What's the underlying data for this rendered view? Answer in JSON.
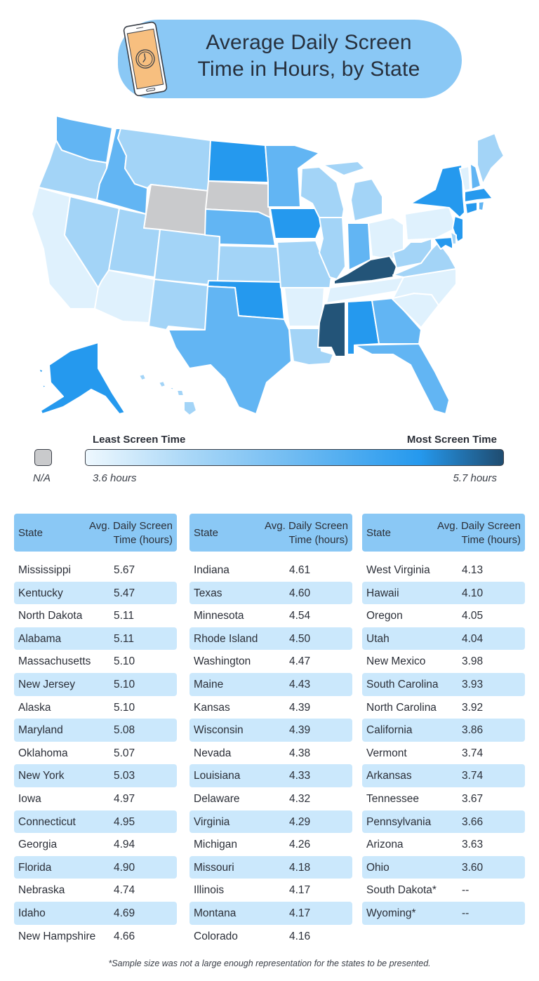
{
  "header": {
    "title_line1": "Average Daily Screen",
    "title_line2": "Time in Hours, by State",
    "icon": "phone-clock-icon"
  },
  "colors": {
    "tier_very_light": "#dff1fd",
    "tier_light": "#a3d4f7",
    "tier_medium": "#62b5f3",
    "tier_bright": "#2599ee",
    "tier_dark": "#235478",
    "na": "#c9cacc",
    "table_header": "#8ac8f5",
    "row_stripe": "#cbe8fc"
  },
  "legend": {
    "least_label": "Least Screen Time",
    "most_label": "Most Screen Time",
    "min_value": "3.6 hours",
    "max_value": "5.7 hours",
    "na_label": "N/A"
  },
  "table_headers": {
    "state": "State",
    "value_line1": "Avg. Daily Screen",
    "value_line2": "Time (hours)"
  },
  "columns": [
    {
      "rows": [
        {
          "state": "Mississippi",
          "value": "5.67"
        },
        {
          "state": "Kentucky",
          "value": "5.47"
        },
        {
          "state": "North Dakota",
          "value": "5.11"
        },
        {
          "state": "Alabama",
          "value": "5.11"
        },
        {
          "state": "Massachusetts",
          "value": "5.10"
        },
        {
          "state": "New Jersey",
          "value": "5.10"
        },
        {
          "state": "Alaska",
          "value": "5.10"
        },
        {
          "state": "Maryland",
          "value": "5.08"
        },
        {
          "state": "Oklahoma",
          "value": "5.07"
        },
        {
          "state": "New York",
          "value": "5.03"
        },
        {
          "state": "Iowa",
          "value": "4.97"
        },
        {
          "state": "Connecticut",
          "value": "4.95"
        },
        {
          "state": "Georgia",
          "value": "4.94"
        },
        {
          "state": "Florida",
          "value": "4.90"
        },
        {
          "state": "Nebraska",
          "value": "4.74"
        },
        {
          "state": "Idaho",
          "value": "4.69"
        },
        {
          "state": "New Hampshire",
          "value": "4.66"
        }
      ]
    },
    {
      "rows": [
        {
          "state": "Indiana",
          "value": "4.61"
        },
        {
          "state": "Texas",
          "value": "4.60"
        },
        {
          "state": "Minnesota",
          "value": "4.54"
        },
        {
          "state": "Rhode Island",
          "value": "4.50"
        },
        {
          "state": "Washington",
          "value": "4.47"
        },
        {
          "state": "Maine",
          "value": "4.43"
        },
        {
          "state": "Kansas",
          "value": "4.39"
        },
        {
          "state": "Wisconsin",
          "value": "4.39"
        },
        {
          "state": "Nevada",
          "value": "4.38"
        },
        {
          "state": "Louisiana",
          "value": "4.33"
        },
        {
          "state": "Delaware",
          "value": "4.32"
        },
        {
          "state": "Virginia",
          "value": "4.29"
        },
        {
          "state": "Michigan",
          "value": "4.26"
        },
        {
          "state": "Missouri",
          "value": "4.18"
        },
        {
          "state": "Illinois",
          "value": "4.17"
        },
        {
          "state": "Montana",
          "value": "4.17"
        },
        {
          "state": "Colorado",
          "value": "4.16"
        }
      ]
    },
    {
      "rows": [
        {
          "state": "West Virginia",
          "value": "4.13"
        },
        {
          "state": "Hawaii",
          "value": "4.10"
        },
        {
          "state": "Oregon",
          "value": "4.05"
        },
        {
          "state": "Utah",
          "value": "4.04"
        },
        {
          "state": "New Mexico",
          "value": "3.98"
        },
        {
          "state": "South Carolina",
          "value": "3.93"
        },
        {
          "state": "North Carolina",
          "value": "3.92"
        },
        {
          "state": "California",
          "value": "3.86"
        },
        {
          "state": "Vermont",
          "value": "3.74"
        },
        {
          "state": "Arkansas",
          "value": "3.74"
        },
        {
          "state": "Tennessee",
          "value": "3.67"
        },
        {
          "state": "Pennsylvania",
          "value": "3.66"
        },
        {
          "state": "Arizona",
          "value": "3.63"
        },
        {
          "state": "Ohio",
          "value": "3.60"
        },
        {
          "state": "South Dakota*",
          "value": "--"
        },
        {
          "state": "Wyoming*",
          "value": "--"
        }
      ]
    }
  ],
  "footnote": "*Sample size was not a large enough representation for the states to be presented.",
  "chart_data": {
    "type": "heatmap",
    "title": "Average Daily Screen Time in Hours, by State",
    "subtype": "choropleth-map-with-table",
    "legend": {
      "min": 3.6,
      "max": 5.7,
      "min_label": "Least Screen Time",
      "max_label": "Most Screen Time",
      "unit": "hours",
      "na_label": "N/A"
    },
    "categories": [
      "Mississippi",
      "Kentucky",
      "North Dakota",
      "Alabama",
      "Massachusetts",
      "New Jersey",
      "Alaska",
      "Maryland",
      "Oklahoma",
      "New York",
      "Iowa",
      "Connecticut",
      "Georgia",
      "Florida",
      "Nebraska",
      "Idaho",
      "New Hampshire",
      "Indiana",
      "Texas",
      "Minnesota",
      "Rhode Island",
      "Washington",
      "Maine",
      "Kansas",
      "Wisconsin",
      "Nevada",
      "Louisiana",
      "Delaware",
      "Virginia",
      "Michigan",
      "Missouri",
      "Illinois",
      "Montana",
      "Colorado",
      "West Virginia",
      "Hawaii",
      "Oregon",
      "Utah",
      "New Mexico",
      "South Carolina",
      "North Carolina",
      "California",
      "Vermont",
      "Arkansas",
      "Tennessee",
      "Pennsylvania",
      "Arizona",
      "Ohio",
      "South Dakota",
      "Wyoming"
    ],
    "values": [
      5.67,
      5.47,
      5.11,
      5.11,
      5.1,
      5.1,
      5.1,
      5.08,
      5.07,
      5.03,
      4.97,
      4.95,
      4.94,
      4.9,
      4.74,
      4.69,
      4.66,
      4.61,
      4.6,
      4.54,
      4.5,
      4.47,
      4.43,
      4.39,
      4.39,
      4.38,
      4.33,
      4.32,
      4.29,
      4.26,
      4.18,
      4.17,
      4.17,
      4.16,
      4.13,
      4.1,
      4.05,
      4.04,
      3.98,
      3.93,
      3.92,
      3.86,
      3.74,
      3.74,
      3.67,
      3.66,
      3.63,
      3.6,
      null,
      null
    ],
    "xlabel": "State",
    "ylabel": "Avg. Daily Screen Time (hours)",
    "note": "*Sample size was not a large enough representation for the states to be presented."
  }
}
